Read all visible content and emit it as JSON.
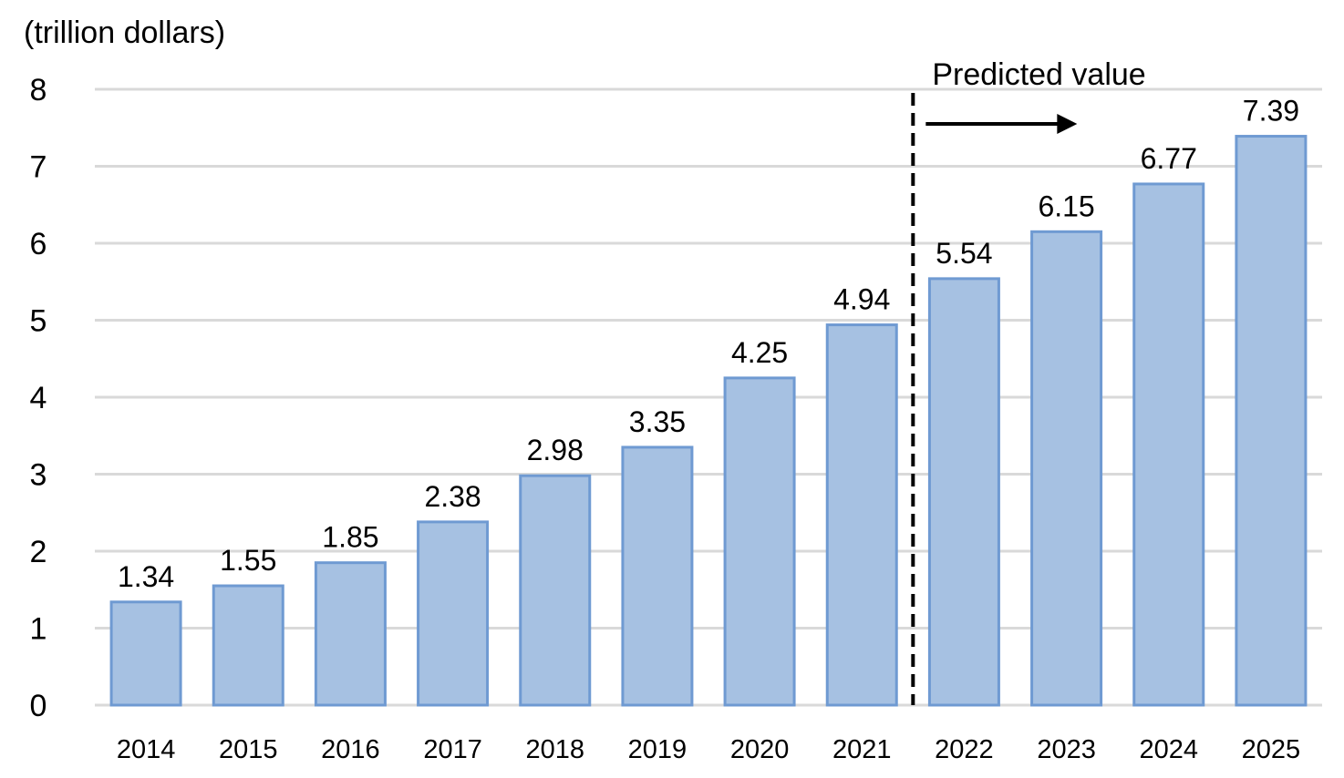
{
  "chart_data": {
    "type": "bar",
    "title": "",
    "unit_label": "(trillion dollars)",
    "xlabel": "",
    "ylabel": "",
    "categories": [
      "2014",
      "2015",
      "2016",
      "2017",
      "2018",
      "2019",
      "2020",
      "2021",
      "2022",
      "2023",
      "2024",
      "2025"
    ],
    "values": [
      1.34,
      1.55,
      1.85,
      2.38,
      2.98,
      3.35,
      4.25,
      4.94,
      5.54,
      6.15,
      6.77,
      7.39
    ],
    "value_labels": [
      "1.34",
      "1.55",
      "1.85",
      "2.38",
      "2.98",
      "3.35",
      "4.25",
      "4.94",
      "5.54",
      "6.15",
      "6.77",
      "7.39"
    ],
    "yticks": [
      "0",
      "1",
      "2",
      "3",
      "4",
      "5",
      "6",
      "7",
      "8"
    ],
    "ylim": [
      0,
      8
    ],
    "grid": true,
    "legend": "none",
    "annotation": {
      "text": "Predicted value",
      "divider_between": [
        "2021",
        "2022"
      ],
      "arrow_direction": "right"
    },
    "colors": {
      "bar_fill": "#a6c1e2",
      "bar_edge": "#6f9ad2",
      "grid": "#d9d9d9",
      "text": "#000000"
    }
  }
}
